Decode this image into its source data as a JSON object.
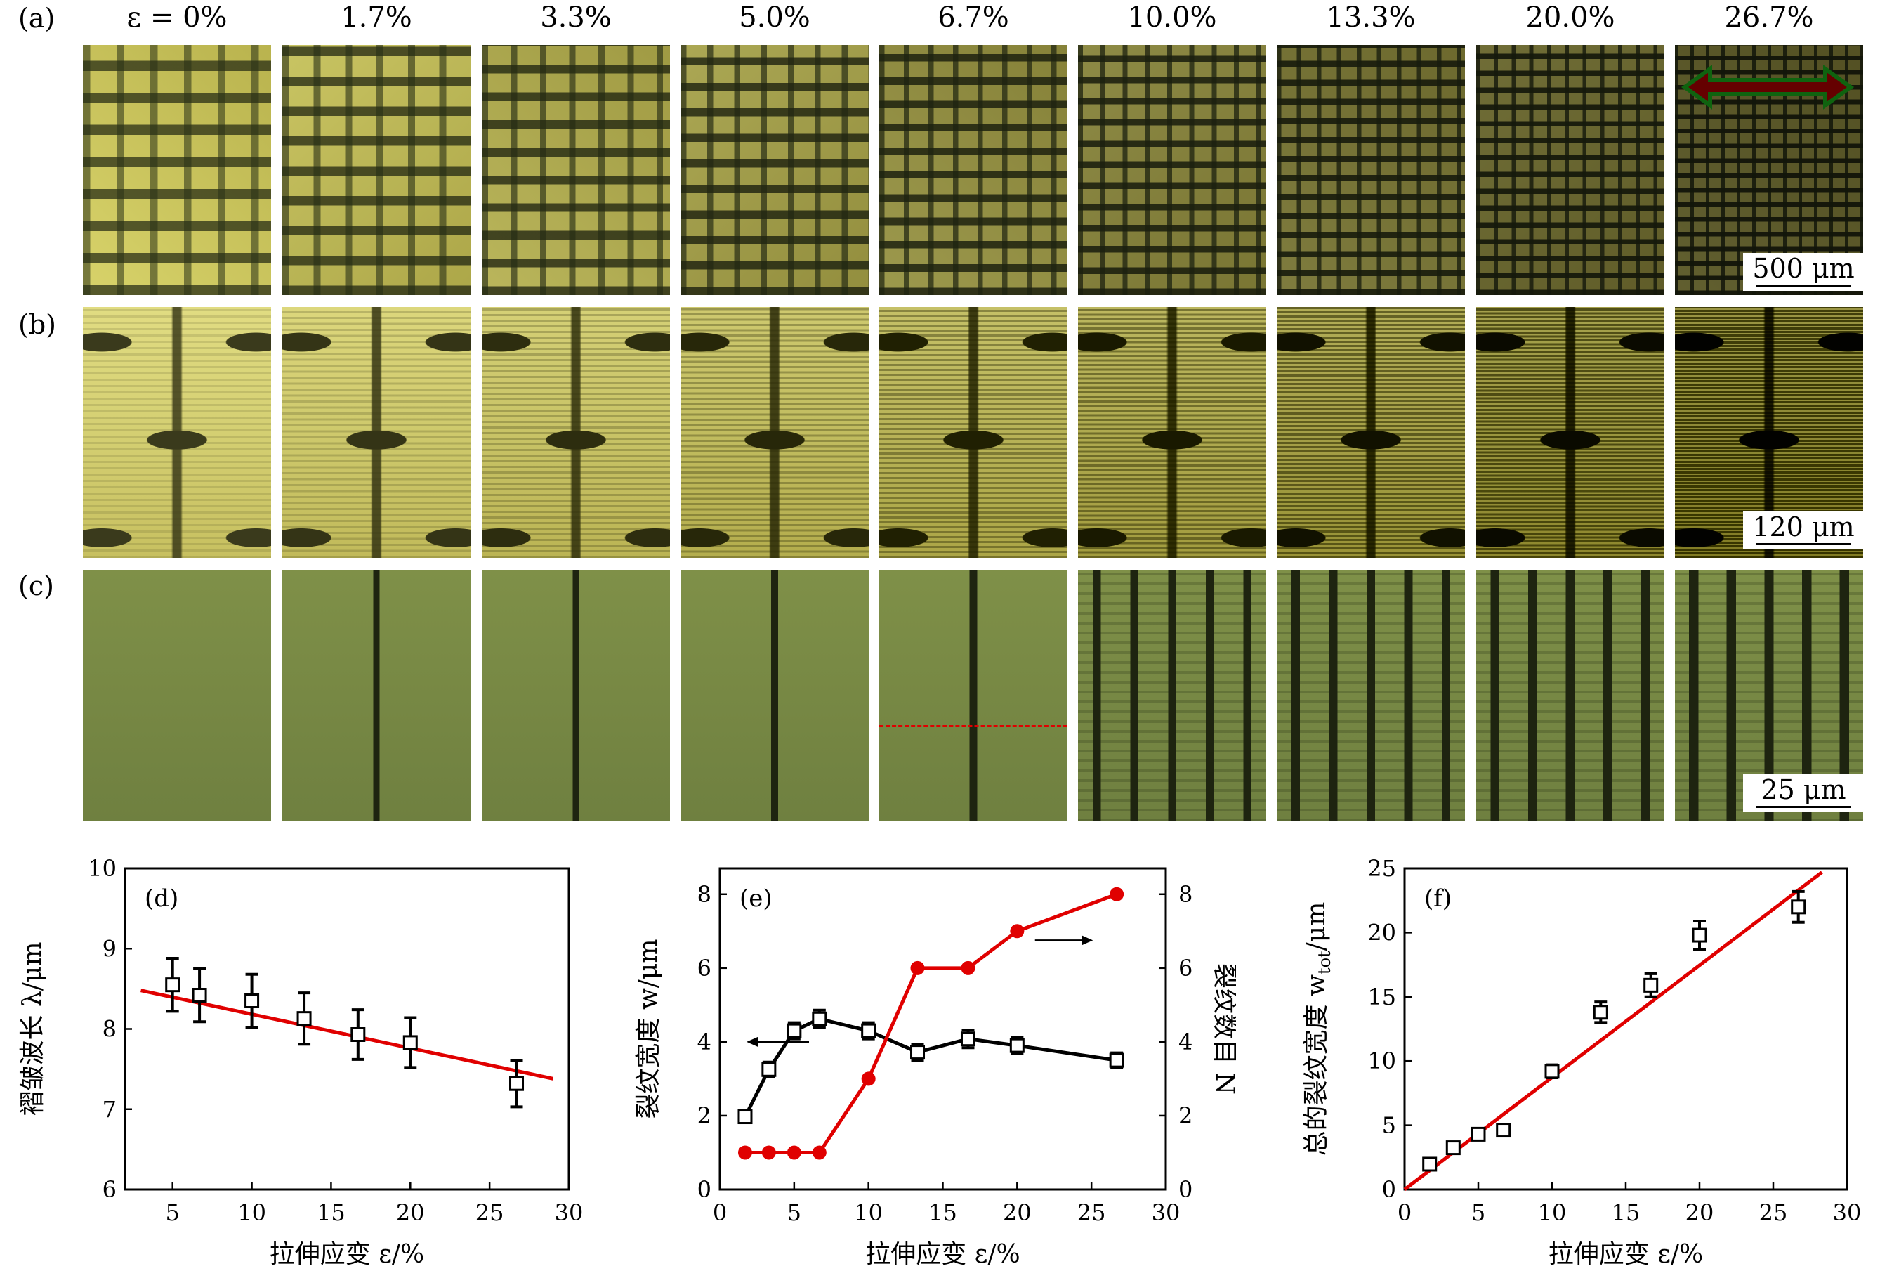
{
  "figure": {
    "row_labels": [
      "(a)",
      "(b)",
      "(c)"
    ],
    "strain_columns": [
      "ε = 0%",
      "1.7%",
      "3.3%",
      "5.0%",
      "6.7%",
      "10.0%",
      "13.3%",
      "20.0%",
      "26.7%"
    ],
    "scale_bars": [
      "500 μm",
      "120 μm",
      "25 μm"
    ],
    "colors": {
      "row_a_light": "#d8d36a",
      "row_a_dark": "#2e3418",
      "row_b_light": "#d4cf72",
      "row_b_dark": "#3a3a1c",
      "row_c_light": "#7f9048",
      "row_c_dark": "#1e2410",
      "red": "#e00000",
      "green_arrow": "#22dd22"
    }
  },
  "chart_data": [
    {
      "panel": "(d)",
      "type": "scatter",
      "xlabel": "拉伸应变 ε/%",
      "ylabel": "褶皱波长 λ/μm",
      "xlim": [
        2,
        30
      ],
      "ylim": [
        6,
        10
      ],
      "xticks": [
        5,
        10,
        15,
        20,
        25,
        30
      ],
      "yticks": [
        6,
        7,
        8,
        9,
        10
      ],
      "series": [
        {
          "x": [
            5.0,
            6.7,
            10.0,
            13.3,
            16.7,
            20.0,
            26.7
          ],
          "y": [
            8.55,
            8.42,
            8.35,
            8.13,
            7.93,
            7.83,
            7.32
          ],
          "err": [
            0.33,
            0.33,
            0.33,
            0.32,
            0.31,
            0.31,
            0.29
          ]
        }
      ],
      "fit": {
        "x": [
          3.0,
          29.0
        ],
        "y": [
          8.48,
          7.38
        ]
      }
    },
    {
      "panel": "(e)",
      "type": "line",
      "xlabel": "拉伸应变 ε/%",
      "ylabel": "裂纹宽度 w/μm",
      "ylabel_right": "裂纹数目 N",
      "xlim": [
        0,
        30
      ],
      "ylim": [
        0,
        8.7
      ],
      "xticks": [
        0,
        5,
        10,
        15,
        20,
        25,
        30
      ],
      "yticks": [
        0,
        2,
        4,
        6,
        8
      ],
      "series": [
        {
          "axis": "left",
          "x": [
            1.7,
            3.3,
            5.0,
            6.7,
            10.0,
            13.3,
            16.7,
            20.0,
            26.7
          ],
          "y": [
            1.97,
            3.25,
            4.3,
            4.62,
            4.3,
            3.72,
            4.08,
            3.9,
            3.5
          ],
          "err": [
            0.1,
            0.2,
            0.22,
            0.24,
            0.22,
            0.22,
            0.24,
            0.22,
            0.2
          ]
        },
        {
          "axis": "right",
          "x": [
            1.7,
            3.3,
            5.0,
            6.7,
            10.0,
            13.3,
            16.7,
            20.0,
            26.7
          ],
          "y": [
            1,
            1,
            1,
            1,
            3,
            6,
            6,
            7,
            8
          ]
        }
      ]
    },
    {
      "panel": "(f)",
      "type": "scatter",
      "xlabel": "拉伸应变 ε/%",
      "ylabel": "总的裂纹宽度 w_tot/μm",
      "xlim": [
        0,
        30
      ],
      "ylim": [
        0,
        25
      ],
      "xticks": [
        0,
        5,
        10,
        15,
        20,
        25,
        30
      ],
      "yticks": [
        0,
        5,
        10,
        15,
        20,
        25
      ],
      "series": [
        {
          "x": [
            1.7,
            3.3,
            5.0,
            6.7,
            10.0,
            13.3,
            16.7,
            20.0,
            26.7
          ],
          "y": [
            1.97,
            3.25,
            4.3,
            4.62,
            9.2,
            13.8,
            15.9,
            19.8,
            22.0
          ],
          "err": [
            0.2,
            0.3,
            0.3,
            0.3,
            0.5,
            0.8,
            0.9,
            1.1,
            1.2
          ]
        }
      ],
      "fit": {
        "x": [
          0,
          28.3
        ],
        "y": [
          0,
          24.7
        ]
      }
    }
  ]
}
